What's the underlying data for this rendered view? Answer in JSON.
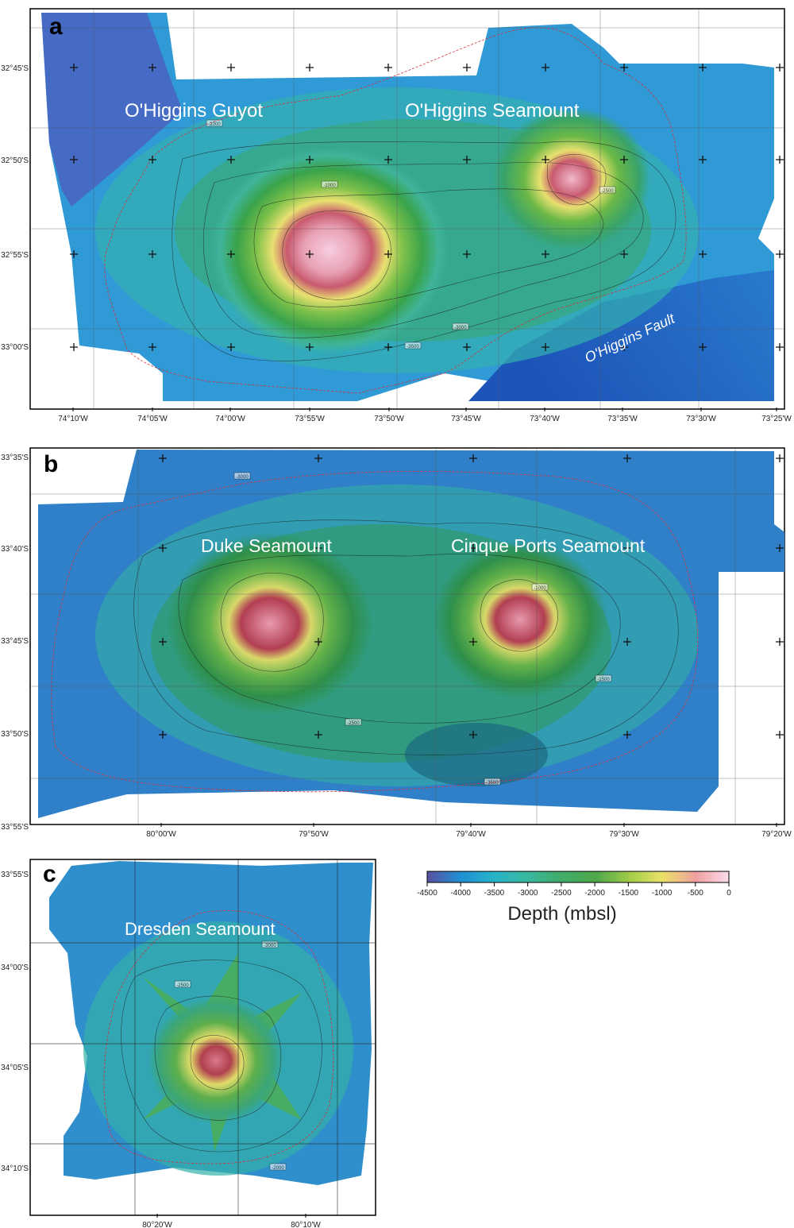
{
  "panels": [
    {
      "letter": "a",
      "lon_ticks": [
        "74°10'W",
        "74°05'W",
        "74°00'W",
        "73°55'W",
        "73°50'W",
        "73°45'W",
        "73°40'W",
        "73°35'W",
        "73°30'W",
        "73°25'W"
      ],
      "lat_ticks": [
        "32°45'S",
        "32°50'S",
        "32°55'S",
        "33°00'S"
      ],
      "labels": [
        "O'Higgins Guyot",
        "O'Higgins Seamount",
        "O'Higgins Fault"
      ]
    },
    {
      "letter": "b",
      "lon_ticks": [
        "80°00'W",
        "79°50'W",
        "79°40'W",
        "79°30'W",
        "79°20'W"
      ],
      "lat_ticks": [
        "33°35'S",
        "33°40'S",
        "33°45'S",
        "33°50'S",
        "33°55'S"
      ],
      "labels": [
        "Duke Seamount",
        "Cinque Ports Seamount"
      ]
    },
    {
      "letter": "c",
      "lon_ticks": [
        "80°20'W",
        "80°10'W"
      ],
      "lat_ticks": [
        "33°55'S",
        "34°00'S",
        "34°05'S",
        "34°10'S"
      ],
      "labels": [
        "Dresden Seamount"
      ]
    }
  ],
  "colorbar": {
    "ticks": [
      "-4500",
      "-4000",
      "-3500",
      "-3000",
      "-2500",
      "-2000",
      "-1500",
      "-1000",
      "-500",
      "0"
    ],
    "title": "Depth (mbsl)",
    "colors": [
      "#5a4fa0",
      "#1f8fd4",
      "#27b3b8",
      "#39b87a",
      "#4aa84a",
      "#8cc43c",
      "#e6e35a",
      "#f2a48c",
      "#f4b8cc",
      "#fbd8ea"
    ]
  },
  "contour_labels": [
    "-2000",
    "-3000",
    "-1000",
    "-2500",
    "-1500",
    "-3500",
    "-500"
  ]
}
